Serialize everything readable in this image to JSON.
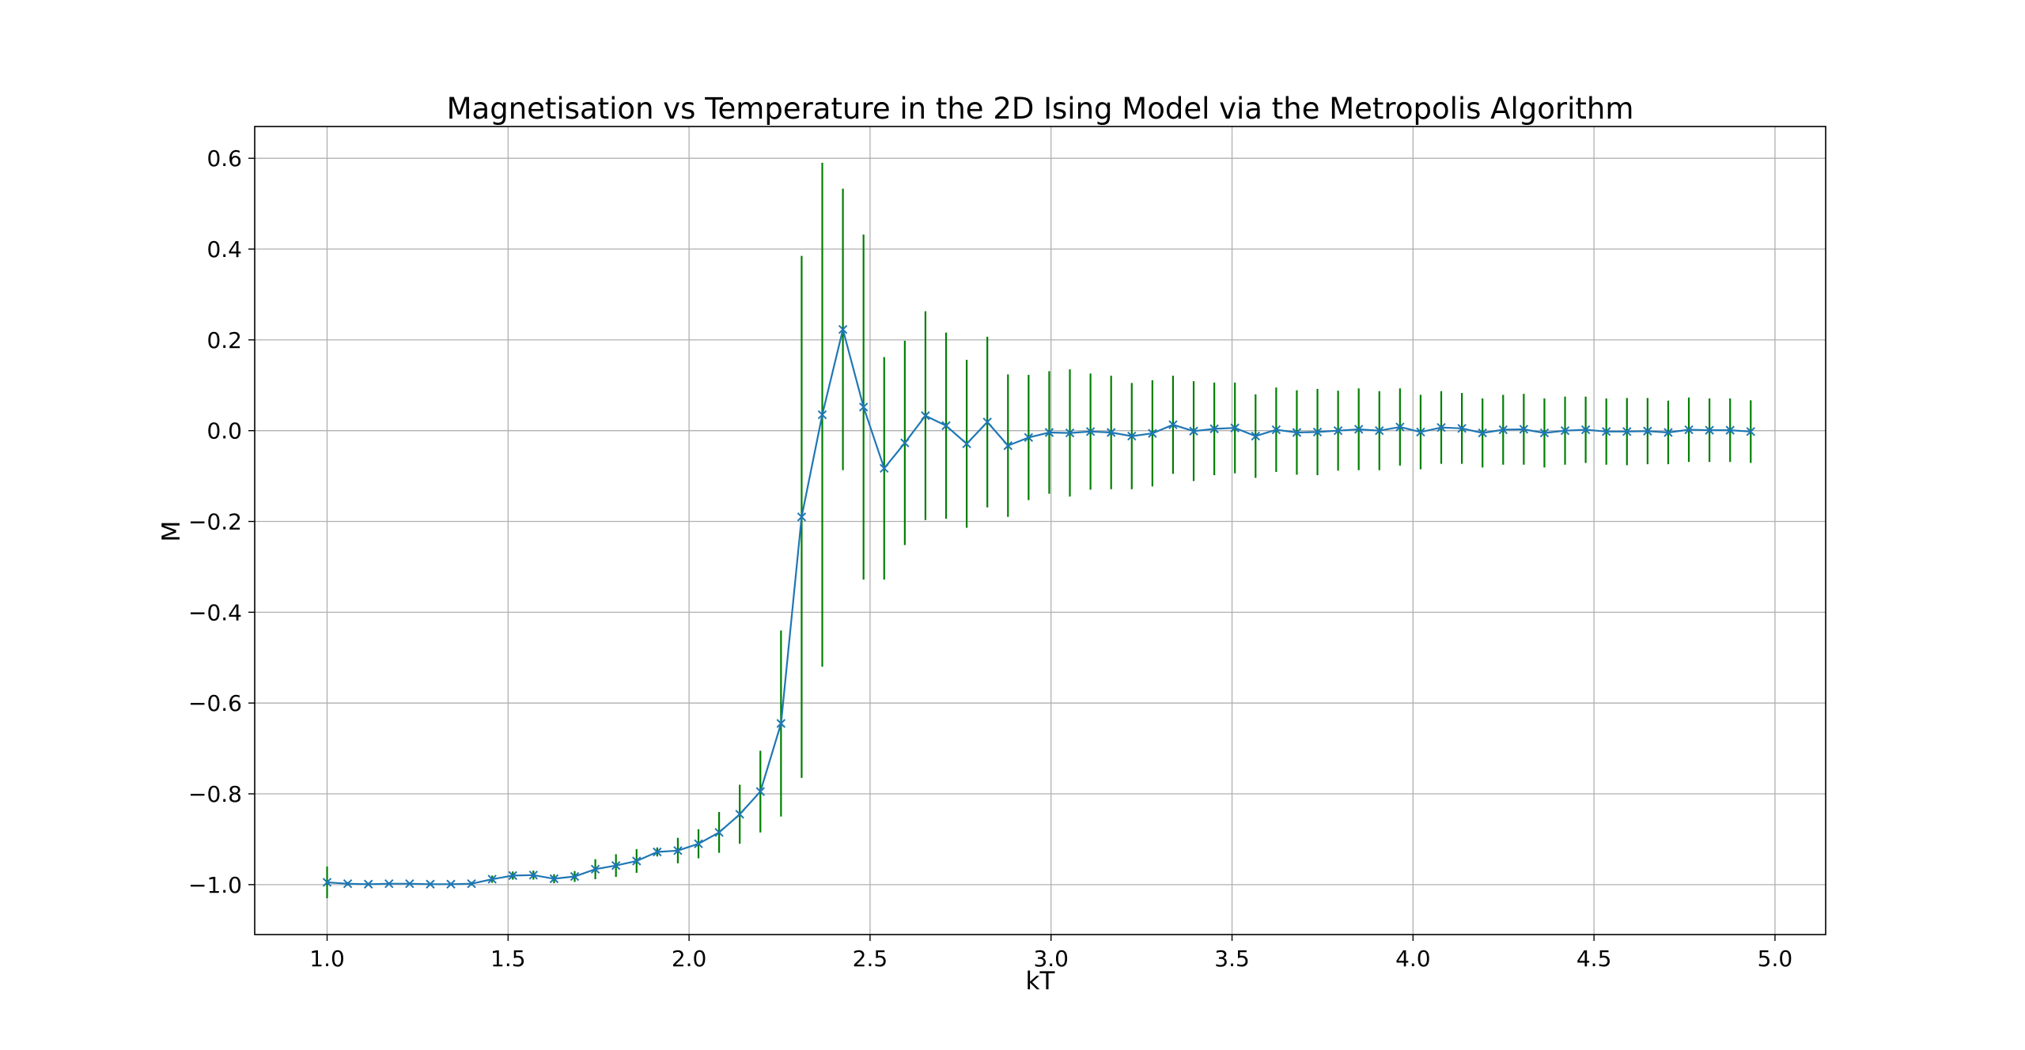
{
  "chart_data": {
    "type": "line",
    "title": "Magnetisation vs Temperature in the 2D Ising Model via the Metropolis Algorithm",
    "xlabel": "kT",
    "ylabel": "M",
    "xlim": [
      0.8,
      5.14
    ],
    "ylim": [
      -1.11,
      0.67
    ],
    "grid": true,
    "xticks": [
      1.0,
      1.5,
      2.0,
      2.5,
      3.0,
      3.5,
      4.0,
      4.5,
      5.0
    ],
    "xtick_labels": [
      "1.0",
      "1.5",
      "2.0",
      "2.5",
      "3.0",
      "3.5",
      "4.0",
      "4.5",
      "5.0"
    ],
    "yticks": [
      -1.0,
      -0.8,
      -0.6,
      -0.4,
      -0.2,
      0.0,
      0.2,
      0.4,
      0.6
    ],
    "ytick_labels": [
      "−1.0",
      "−0.8",
      "−0.6",
      "−0.4",
      "−0.2",
      "0.0",
      "0.2",
      "0.4",
      "0.6"
    ],
    "colors": {
      "line": "#1f77b4",
      "errorbar": "#008000",
      "grid": "#b0b0b0"
    },
    "marker": "x",
    "series": [
      {
        "x": [
          1.0,
          1.057,
          1.114,
          1.171,
          1.228,
          1.285,
          1.342,
          1.399,
          1.456,
          1.513,
          1.57,
          1.627,
          1.684,
          1.741,
          1.798,
          1.855,
          1.912,
          1.969,
          2.026,
          2.083,
          2.14,
          2.197,
          2.254,
          2.311,
          2.368,
          2.425,
          2.482,
          2.539,
          2.596,
          2.653,
          2.71,
          2.767,
          2.824,
          2.881,
          2.938,
          2.995,
          3.052,
          3.109,
          3.166,
          3.223,
          3.28,
          3.337,
          3.394,
          3.451,
          3.508,
          3.565,
          3.622,
          3.679,
          3.736,
          3.793,
          3.85,
          3.907,
          3.964,
          4.021,
          4.078,
          4.135,
          4.192,
          4.249,
          4.306,
          4.363,
          4.42,
          4.477,
          4.534,
          4.591,
          4.648,
          4.705,
          4.762,
          4.819,
          4.876,
          4.933
        ],
        "y": [
          -0.995,
          -0.998,
          -0.999,
          -0.998,
          -0.998,
          -0.999,
          -0.999,
          -0.998,
          -0.988,
          -0.98,
          -0.979,
          -0.987,
          -0.982,
          -0.966,
          -0.958,
          -0.948,
          -0.928,
          -0.925,
          -0.91,
          -0.885,
          -0.845,
          -0.795,
          -0.645,
          -0.19,
          0.035,
          0.223,
          0.052,
          -0.083,
          -0.027,
          0.033,
          0.011,
          -0.029,
          0.019,
          -0.033,
          -0.015,
          -0.004,
          -0.005,
          -0.002,
          -0.004,
          -0.012,
          -0.006,
          0.013,
          -0.001,
          0.004,
          0.006,
          -0.012,
          0.002,
          -0.004,
          -0.003,
          0.0,
          0.003,
          0.0,
          0.008,
          -0.003,
          0.007,
          0.005,
          -0.005,
          0.002,
          0.003,
          -0.005,
          0.0,
          0.002,
          -0.002,
          -0.002,
          -0.001,
          -0.004,
          0.002,
          0.001,
          0.001,
          -0.002
        ],
        "yerr": [
          0.035,
          0.004,
          0.003,
          0.003,
          0.003,
          0.003,
          0.003,
          0.004,
          0.008,
          0.009,
          0.01,
          0.01,
          0.012,
          0.022,
          0.025,
          0.026,
          0.01,
          0.028,
          0.032,
          0.045,
          0.065,
          0.09,
          0.205,
          0.575,
          0.555,
          0.31,
          0.38,
          0.245,
          0.225,
          0.23,
          0.205,
          0.185,
          0.188,
          0.157,
          0.138,
          0.135,
          0.14,
          0.128,
          0.125,
          0.117,
          0.117,
          0.108,
          0.11,
          0.102,
          0.1,
          0.092,
          0.093,
          0.093,
          0.095,
          0.088,
          0.09,
          0.087,
          0.085,
          0.082,
          0.08,
          0.078,
          0.076,
          0.077,
          0.078,
          0.076,
          0.075,
          0.073,
          0.073,
          0.074,
          0.073,
          0.07,
          0.071,
          0.07,
          0.07,
          0.069
        ]
      }
    ]
  }
}
